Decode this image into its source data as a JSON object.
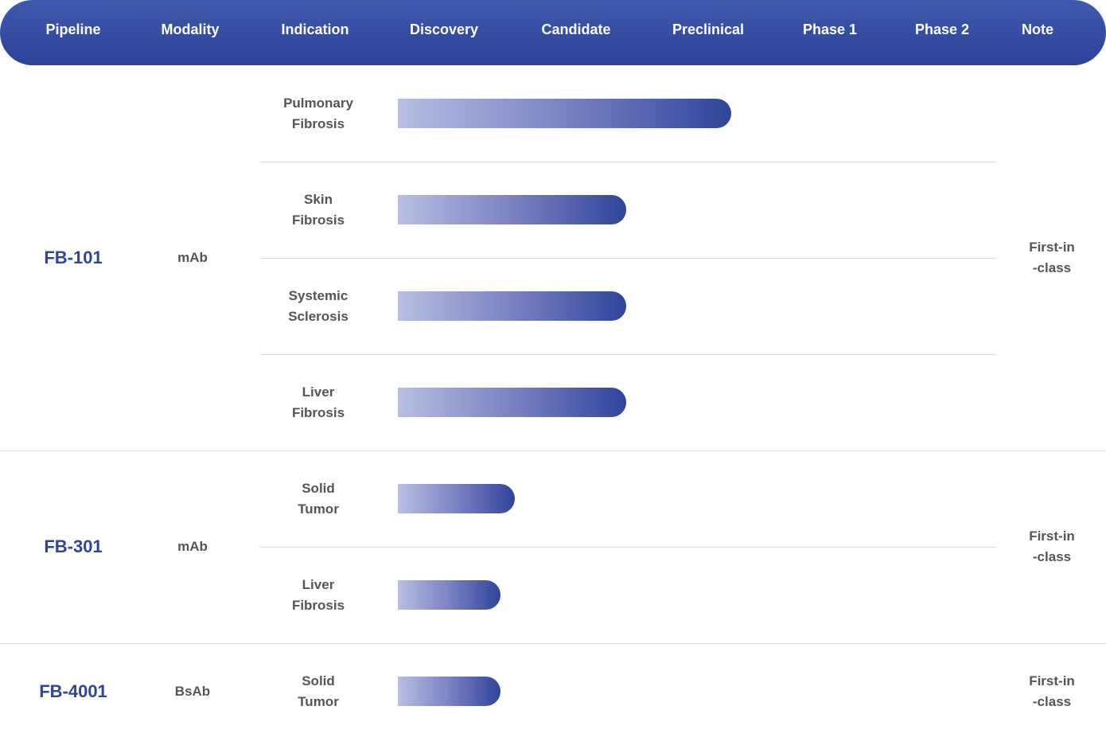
{
  "chart_data": {
    "type": "bar",
    "orientation": "horizontal",
    "stages": [
      "Discovery",
      "Candidate",
      "Preclinical",
      "Phase 1",
      "Phase 2"
    ],
    "headers": {
      "pipeline": "Pipeline",
      "modality": "Modality",
      "indication": "Indication",
      "note": "Note"
    },
    "programs": [
      {
        "name": "FB-101",
        "modality": "mAb",
        "note": [
          "First-in",
          "-class"
        ],
        "indications": [
          {
            "label": [
              "Pulmonary",
              "Fibrosis"
            ],
            "progress": 2.7
          },
          {
            "label": [
              "Skin",
              "Fibrosis"
            ],
            "progress": 1.85
          },
          {
            "label": [
              "Systemic",
              "Sclerosis"
            ],
            "progress": 1.85
          },
          {
            "label": [
              "Liver",
              "Fibrosis"
            ],
            "progress": 1.85
          }
        ]
      },
      {
        "name": "FB-301",
        "modality": "mAb",
        "note": [
          "First-in",
          "-class"
        ],
        "indications": [
          {
            "label": [
              "Solid",
              "Tumor"
            ],
            "progress": 0.95
          },
          {
            "label": [
              "Liver",
              "Fibrosis"
            ],
            "progress": 0.83
          }
        ]
      },
      {
        "name": "FB-4001",
        "modality": "BsAb",
        "note": [
          "First-in",
          "-class"
        ],
        "indications": [
          {
            "label": [
              "Solid",
              "Tumor"
            ],
            "progress": 0.83
          }
        ]
      }
    ]
  }
}
